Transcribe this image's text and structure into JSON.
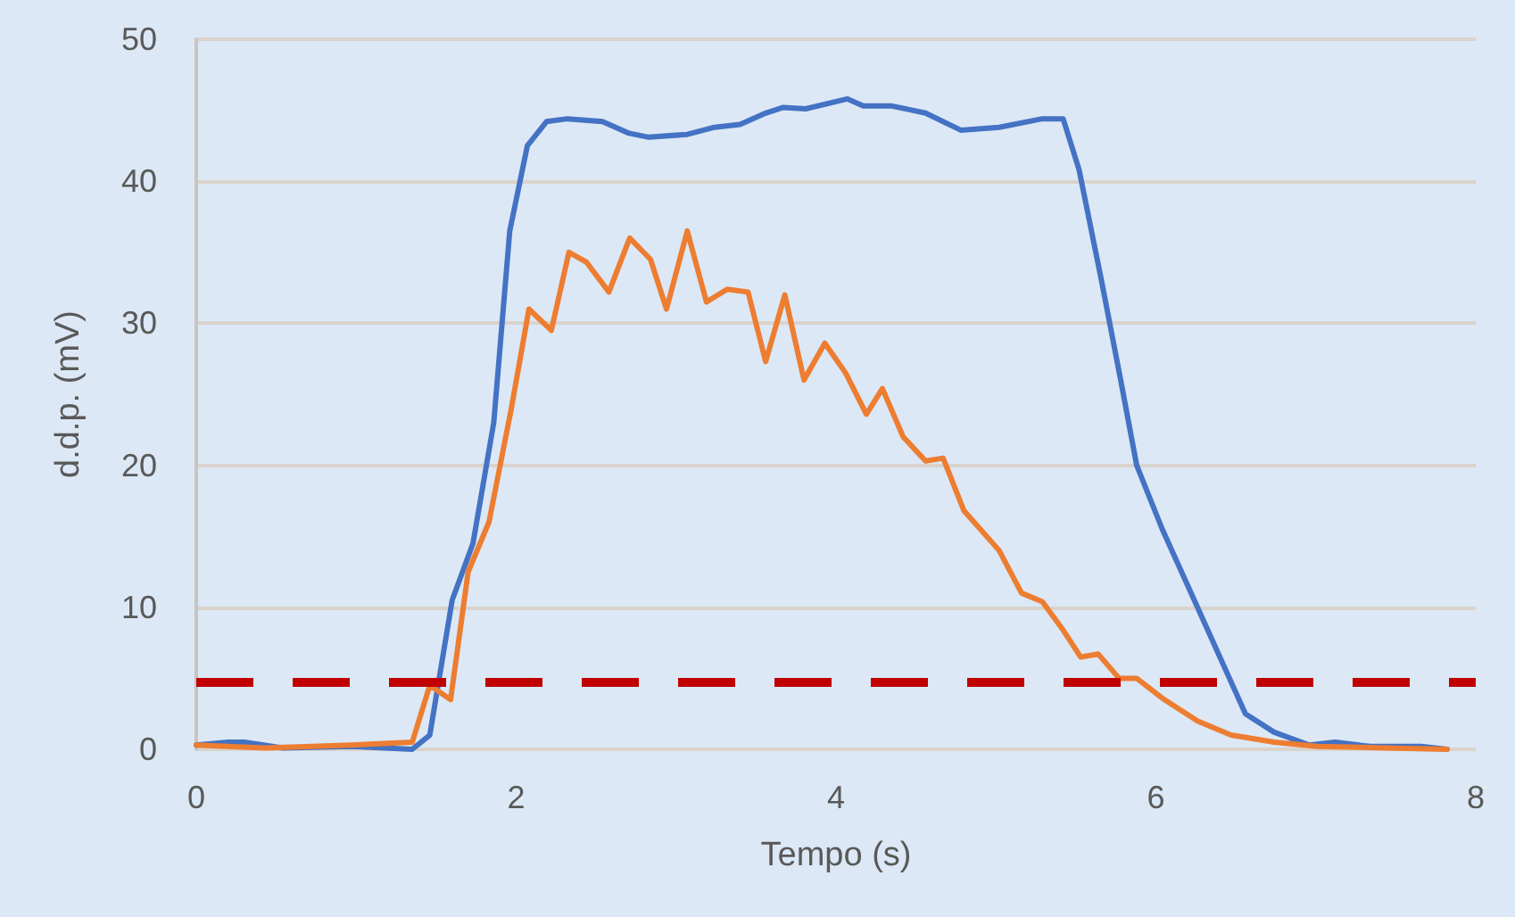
{
  "chart_data": {
    "type": "line",
    "xlabel": "Tempo (s)",
    "ylabel": "d.d.p. (mV)",
    "xlim": [
      0,
      8
    ],
    "xticks": [
      0,
      2,
      4,
      6,
      8
    ],
    "ylim": [
      0,
      50
    ],
    "yticks": [
      0,
      10,
      20,
      30,
      40,
      50
    ],
    "grid": "y",
    "marker": "none",
    "line_style": "solid",
    "series": [
      {
        "color": "#4472c4",
        "x": [
          0,
          0.2,
          0.3,
          0.54,
          0.97,
          1.35,
          1.46,
          1.6,
          1.73,
          1.86,
          1.96,
          2.07,
          2.19,
          2.32,
          2.54,
          2.7,
          2.83,
          3.07,
          3.24,
          3.4,
          3.56,
          3.67,
          3.81,
          4.07,
          4.17,
          4.35,
          4.56,
          4.78,
          5.02,
          5.29,
          5.42,
          5.52,
          5.66,
          5.78,
          5.88,
          6.04,
          6.24,
          6.42,
          6.56,
          6.74,
          6.96,
          7.12,
          7.34,
          7.66,
          7.82
        ],
        "values": [
          0.3,
          0.5,
          0.5,
          0.1,
          0.2,
          0,
          1,
          10.5,
          14.5,
          23,
          36.5,
          42.5,
          44.2,
          44.4,
          44.2,
          43.4,
          43.1,
          43.3,
          43.8,
          44,
          44.8,
          45.2,
          45.1,
          45.8,
          45.3,
          45.3,
          44.8,
          43.6,
          43.8,
          44.4,
          44.4,
          40.8,
          33,
          26,
          20,
          15.5,
          10.5,
          6,
          2.5,
          1.2,
          0.3,
          0.5,
          0.2,
          0.2,
          0
        ]
      },
      {
        "color": "#ed7d31",
        "x": [
          0,
          0.43,
          0.97,
          1.35,
          1.46,
          1.59,
          1.7,
          1.83,
          1.97,
          2.08,
          2.22,
          2.33,
          2.44,
          2.58,
          2.71,
          2.84,
          2.94,
          3.07,
          3.19,
          3.32,
          3.45,
          3.56,
          3.68,
          3.8,
          3.93,
          4.06,
          4.19,
          4.29,
          4.42,
          4.56,
          4.67,
          4.8,
          5.02,
          5.16,
          5.29,
          5.42,
          5.53,
          5.64,
          5.77,
          5.88,
          6.04,
          6.26,
          6.47,
          6.74,
          7.01,
          7.44,
          7.82
        ],
        "values": [
          0.3,
          0.1,
          0.3,
          0.5,
          4.5,
          3.5,
          12.5,
          16,
          24,
          31,
          29.5,
          35,
          34.3,
          32.2,
          36,
          34.5,
          31,
          36.5,
          31.5,
          32.4,
          32.2,
          27.3,
          32,
          26,
          28.6,
          26.5,
          23.6,
          25.4,
          22,
          20.3,
          20.5,
          16.8,
          14,
          11,
          10.4,
          8.4,
          6.5,
          6.7,
          5,
          5,
          3.6,
          2,
          1,
          0.5,
          0.2,
          0.1,
          0
        ]
      }
    ],
    "ref_lines": [
      {
        "axis": "y",
        "value": 4.7,
        "color": "#c00000",
        "line_style": "dashed"
      }
    ]
  }
}
